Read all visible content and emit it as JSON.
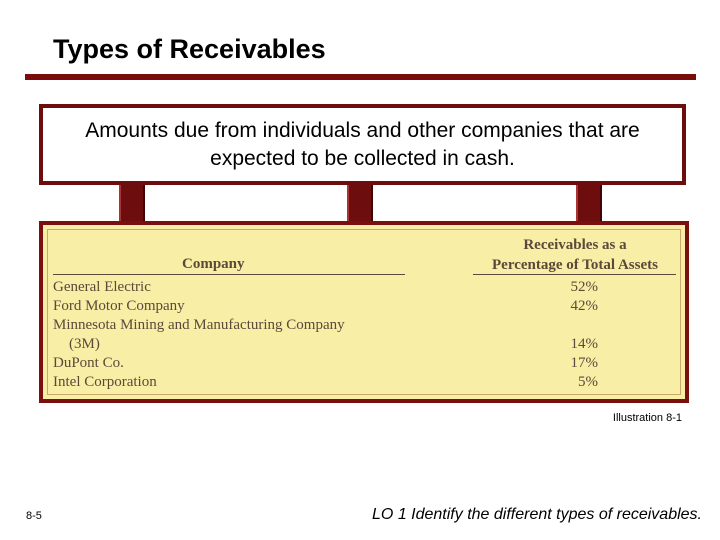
{
  "slide": {
    "title": "Types of Receivables",
    "definition": "Amounts due from individuals and other companies that are expected to be collected in cash."
  },
  "table": {
    "company_header": "Company",
    "pct_header_line1": "Receivables as a",
    "pct_header_line2": "Percentage of Total Assets",
    "rows": [
      {
        "company": "General Electric",
        "pct": "52%"
      },
      {
        "company": "Ford Motor Company",
        "pct": "42%"
      },
      {
        "company": "Minnesota Mining and Manufacturing Company",
        "pct": ""
      },
      {
        "company": "(3M)",
        "pct": "14%"
      },
      {
        "company": "DuPont Co.",
        "pct": "17%"
      },
      {
        "company": "Intel Corporation",
        "pct": "5%"
      }
    ]
  },
  "footer": {
    "illustration": "Illustration 8-1",
    "slide_number": "8-5",
    "learning_objective": "LO 1  Identify the different types of receivables."
  },
  "colors": {
    "accent": "#7a0c0c",
    "panel": "#f8eea6",
    "table_text": "#5a4a3a"
  }
}
